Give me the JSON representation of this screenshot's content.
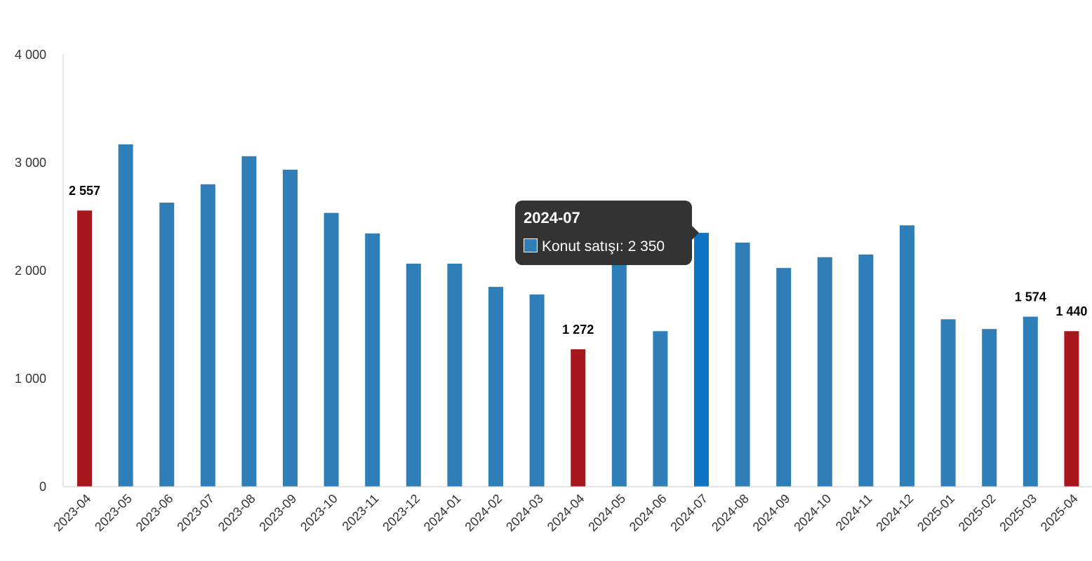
{
  "chart_data": {
    "type": "bar",
    "categories": [
      "2023-04",
      "2023-05",
      "2023-06",
      "2023-07",
      "2023-08",
      "2023-09",
      "2023-10",
      "2023-11",
      "2023-12",
      "2024-01",
      "2024-02",
      "2024-03",
      "2024-04",
      "2024-05",
      "2024-06",
      "2024-07",
      "2024-08",
      "2024-09",
      "2024-10",
      "2024-11",
      "2024-12",
      "2025-01",
      "2025-02",
      "2025-03",
      "2025-04"
    ],
    "series": [
      {
        "name": "Konut satışı",
        "values": [
          2557,
          3170,
          2630,
          2800,
          3060,
          2935,
          2535,
          2345,
          2065,
          2065,
          1850,
          1780,
          1272,
          2075,
          1440,
          2350,
          2260,
          2025,
          2125,
          2150,
          2420,
          1550,
          1460,
          1574,
          1440
        ]
      }
    ],
    "highlighted_categories": [
      "2023-04",
      "2024-04",
      "2025-04"
    ],
    "data_labels": [
      {
        "category": "2023-04",
        "text": "2 557"
      },
      {
        "category": "2024-04",
        "text": "1 272"
      },
      {
        "category": "2025-03",
        "text": "1 574"
      },
      {
        "category": "2025-04",
        "text": "1 440"
      }
    ],
    "y_ticks": [
      {
        "value": 0,
        "label": "0"
      },
      {
        "value": 1000,
        "label": "1 000"
      },
      {
        "value": 2000,
        "label": "2 000"
      },
      {
        "value": 3000,
        "label": "3 000"
      },
      {
        "value": 4000,
        "label": "4 000"
      }
    ],
    "ylim": [
      0,
      4000
    ],
    "grid": false,
    "legend": "none",
    "colors": {
      "bar": "#2F7EB8",
      "bar_highlight": "#A8171E",
      "bar_hover": "#0E73C2",
      "axis": "#cccccc"
    }
  },
  "tooltip": {
    "category": "2024-07",
    "series_label": "Konut satışı: 2 350",
    "swatch_color": "#2F7EB8"
  }
}
